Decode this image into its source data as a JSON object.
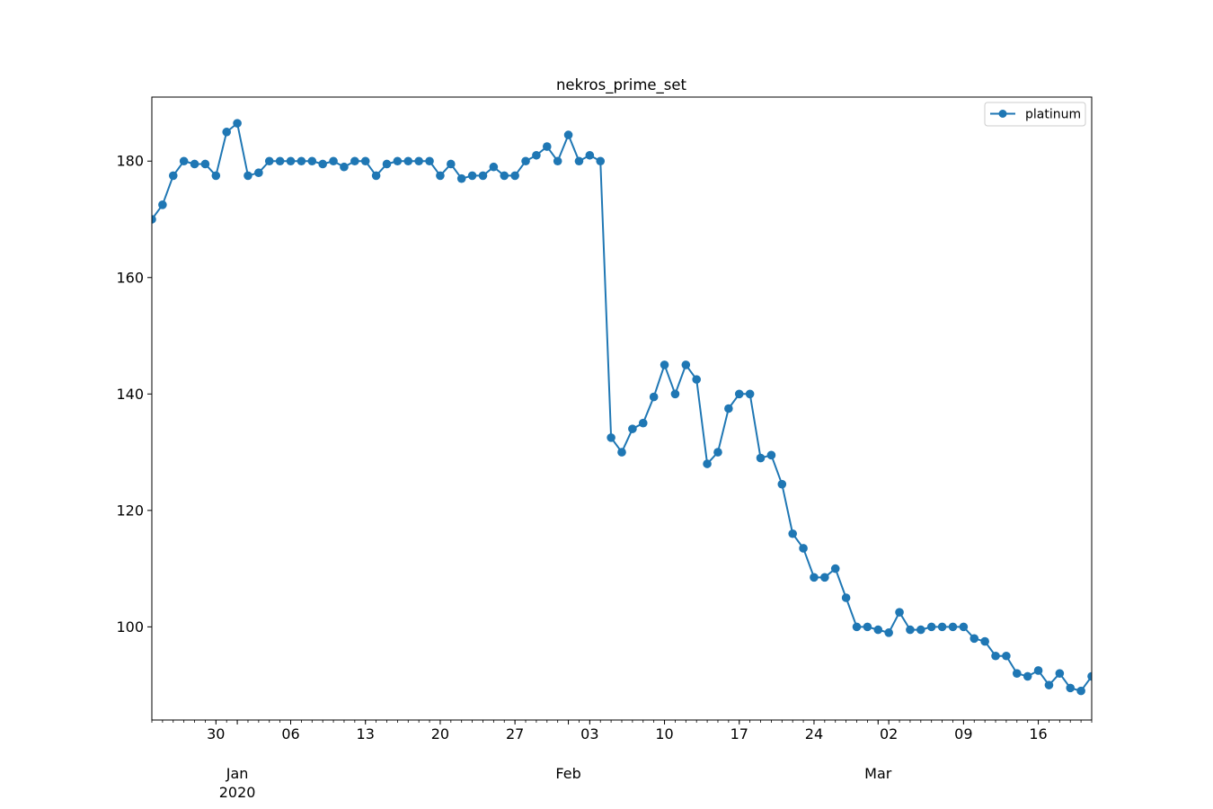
{
  "chart_data": {
    "type": "line",
    "title": "nekros_prime_set",
    "xlabel": "",
    "ylabel": "",
    "x_start": "2019-12-24",
    "xlim": [
      "2019-12-24",
      "2020-03-21"
    ],
    "ylim": [
      84,
      191
    ],
    "y_ticks": [
      100,
      120,
      140,
      160,
      180
    ],
    "x_day_ticks": [
      {
        "date": "2019-12-30",
        "label": "30"
      },
      {
        "date": "2020-01-06",
        "label": "06"
      },
      {
        "date": "2020-01-13",
        "label": "13"
      },
      {
        "date": "2020-01-20",
        "label": "20"
      },
      {
        "date": "2020-01-27",
        "label": "27"
      },
      {
        "date": "2020-02-03",
        "label": "03"
      },
      {
        "date": "2020-02-10",
        "label": "10"
      },
      {
        "date": "2020-02-17",
        "label": "17"
      },
      {
        "date": "2020-02-24",
        "label": "24"
      },
      {
        "date": "2020-03-02",
        "label": "02"
      },
      {
        "date": "2020-03-09",
        "label": "09"
      },
      {
        "date": "2020-03-16",
        "label": "16"
      }
    ],
    "x_month_ticks": [
      {
        "date": "2020-01-01",
        "label": "Jan",
        "sublabel": "2020"
      },
      {
        "date": "2020-02-01",
        "label": "Feb",
        "sublabel": ""
      },
      {
        "date": "2020-03-01",
        "label": "Mar",
        "sublabel": ""
      }
    ],
    "grid": false,
    "legend_position": "top-right",
    "series": [
      {
        "name": "platinum",
        "color": "#1f77b4",
        "marker": "circle",
        "values": [
          170,
          172.5,
          177.5,
          180,
          179.5,
          179.5,
          177.5,
          185,
          186.5,
          177.5,
          178,
          180,
          180,
          180,
          180,
          180,
          179.5,
          180,
          179,
          180,
          180,
          177.5,
          179.5,
          180,
          180,
          180,
          180,
          177.5,
          179.5,
          177,
          177.5,
          177.5,
          179,
          177.5,
          177.5,
          180,
          181,
          182.5,
          180,
          184.5,
          180,
          181,
          180,
          132.5,
          130,
          134,
          135,
          139.5,
          145,
          140,
          145,
          142.5,
          128,
          130,
          137.5,
          140,
          140,
          129,
          129.5,
          124.5,
          116,
          113.5,
          108.5,
          108.5,
          110,
          105,
          100,
          100,
          99.5,
          99,
          102.5,
          99.5,
          99.5,
          100,
          100,
          100,
          100,
          98,
          97.5,
          95,
          95,
          92,
          91.5,
          92.5,
          90,
          92,
          89.5,
          89,
          91.5
        ]
      }
    ]
  }
}
